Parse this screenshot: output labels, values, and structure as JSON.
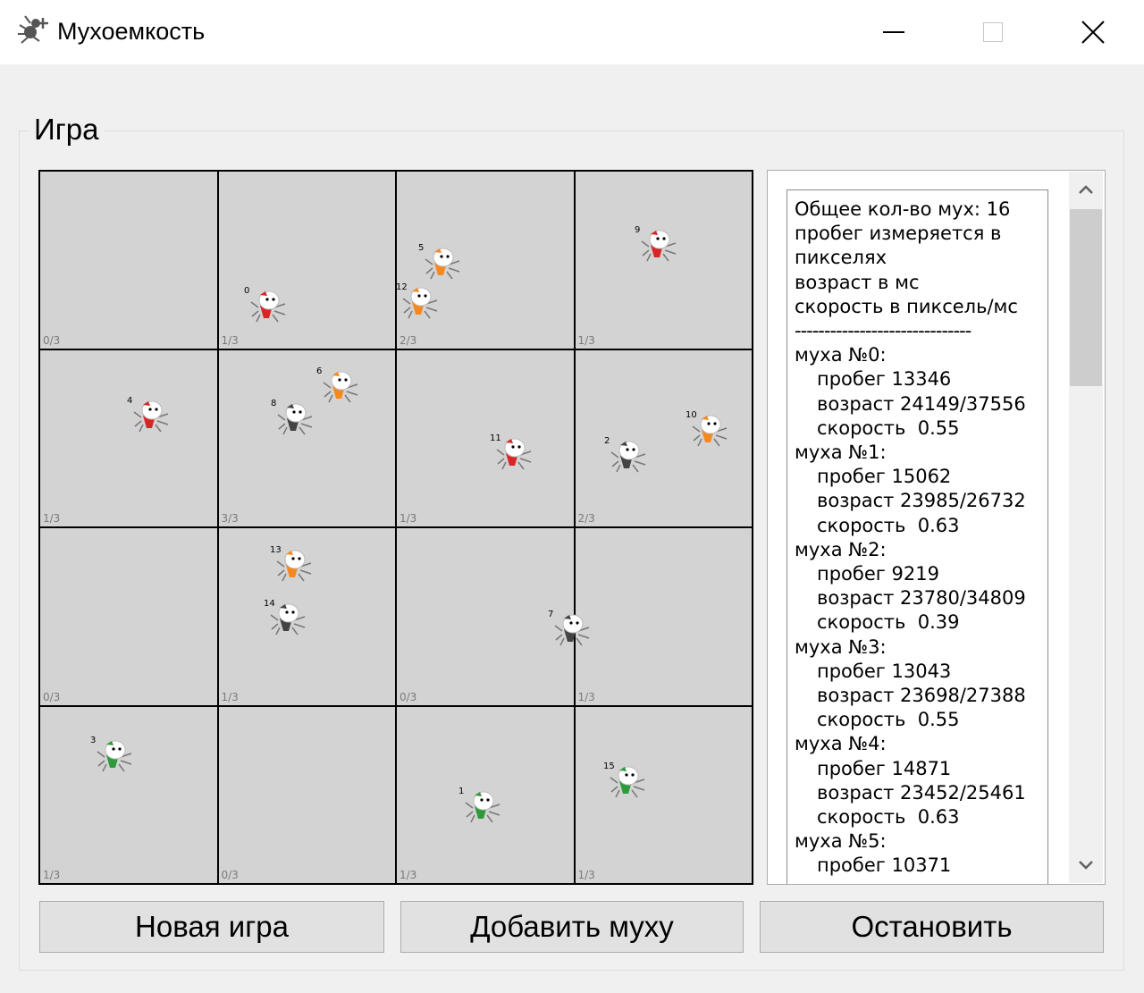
{
  "window": {
    "title": "Мухоемкость",
    "icon": "fly-app-icon",
    "controls": [
      "minimize-icon",
      "maximize-icon",
      "close-icon"
    ]
  },
  "group": {
    "title": "Игра"
  },
  "board": {
    "rows": 4,
    "cols": 4,
    "cells": [
      {
        "count": "0/3"
      },
      {
        "count": "1/3"
      },
      {
        "count": "2/3"
      },
      {
        "count": "1/3"
      },
      {
        "count": "1/3"
      },
      {
        "count": "3/3"
      },
      {
        "count": "1/3"
      },
      {
        "count": "2/3"
      },
      {
        "count": "0/3"
      },
      {
        "count": "1/3"
      },
      {
        "count": "0/3"
      },
      {
        "count": "1/3"
      },
      {
        "count": "1/3"
      },
      {
        "count": "0/3"
      },
      {
        "count": "1/3"
      },
      {
        "count": "1/3"
      }
    ],
    "flies": [
      {
        "id": "0",
        "color": "#d62728"
      },
      {
        "id": "5",
        "color": "#f5891f"
      },
      {
        "id": "12",
        "color": "#f5891f"
      },
      {
        "id": "9",
        "color": "#d62728"
      },
      {
        "id": "4",
        "color": "#d62728"
      },
      {
        "id": "6",
        "color": "#f5891f"
      },
      {
        "id": "8",
        "color": "#444444"
      },
      {
        "id": "11",
        "color": "#d62728"
      },
      {
        "id": "2",
        "color": "#444444"
      },
      {
        "id": "10",
        "color": "#f5891f"
      },
      {
        "id": "13",
        "color": "#f5891f"
      },
      {
        "id": "14",
        "color": "#444444"
      },
      {
        "id": "7",
        "color": "#444444"
      },
      {
        "id": "3",
        "color": "#2e9a3a"
      },
      {
        "id": "1",
        "color": "#2e9a3a"
      },
      {
        "id": "15",
        "color": "#2e9a3a"
      }
    ]
  },
  "info": {
    "header": [
      "Общее кол-во мух: 16",
      "пробег измеряется в",
      "пикселях",
      "возраст в мс",
      "скорость в пиксель/мс"
    ],
    "separator": "------------------------------",
    "flies": [
      {
        "title": "муха №0:",
        "run": "пробег 13346",
        "age": "возраст 24149/37556",
        "speed": "скорость  0.55"
      },
      {
        "title": "муха №1:",
        "run": "пробег 15062",
        "age": "возраст 23985/26732",
        "speed": "скорость  0.63"
      },
      {
        "title": "муха №2:",
        "run": "пробег 9219",
        "age": "возраст 23780/34809",
        "speed": "скорость  0.39"
      },
      {
        "title": "муха №3:",
        "run": "пробег 13043",
        "age": "возраст 23698/27388",
        "speed": "скорость  0.55"
      },
      {
        "title": "муха №4:",
        "run": "пробег 14871",
        "age": "возраст 23452/25461",
        "speed": "скорость  0.63"
      },
      {
        "title": "муха №5:",
        "run": "пробег 10371",
        "age": "",
        "speed": ""
      }
    ]
  },
  "buttons": {
    "new_game": "Новая игра",
    "add_fly": "Добавить муху",
    "stop": "Остановить"
  }
}
